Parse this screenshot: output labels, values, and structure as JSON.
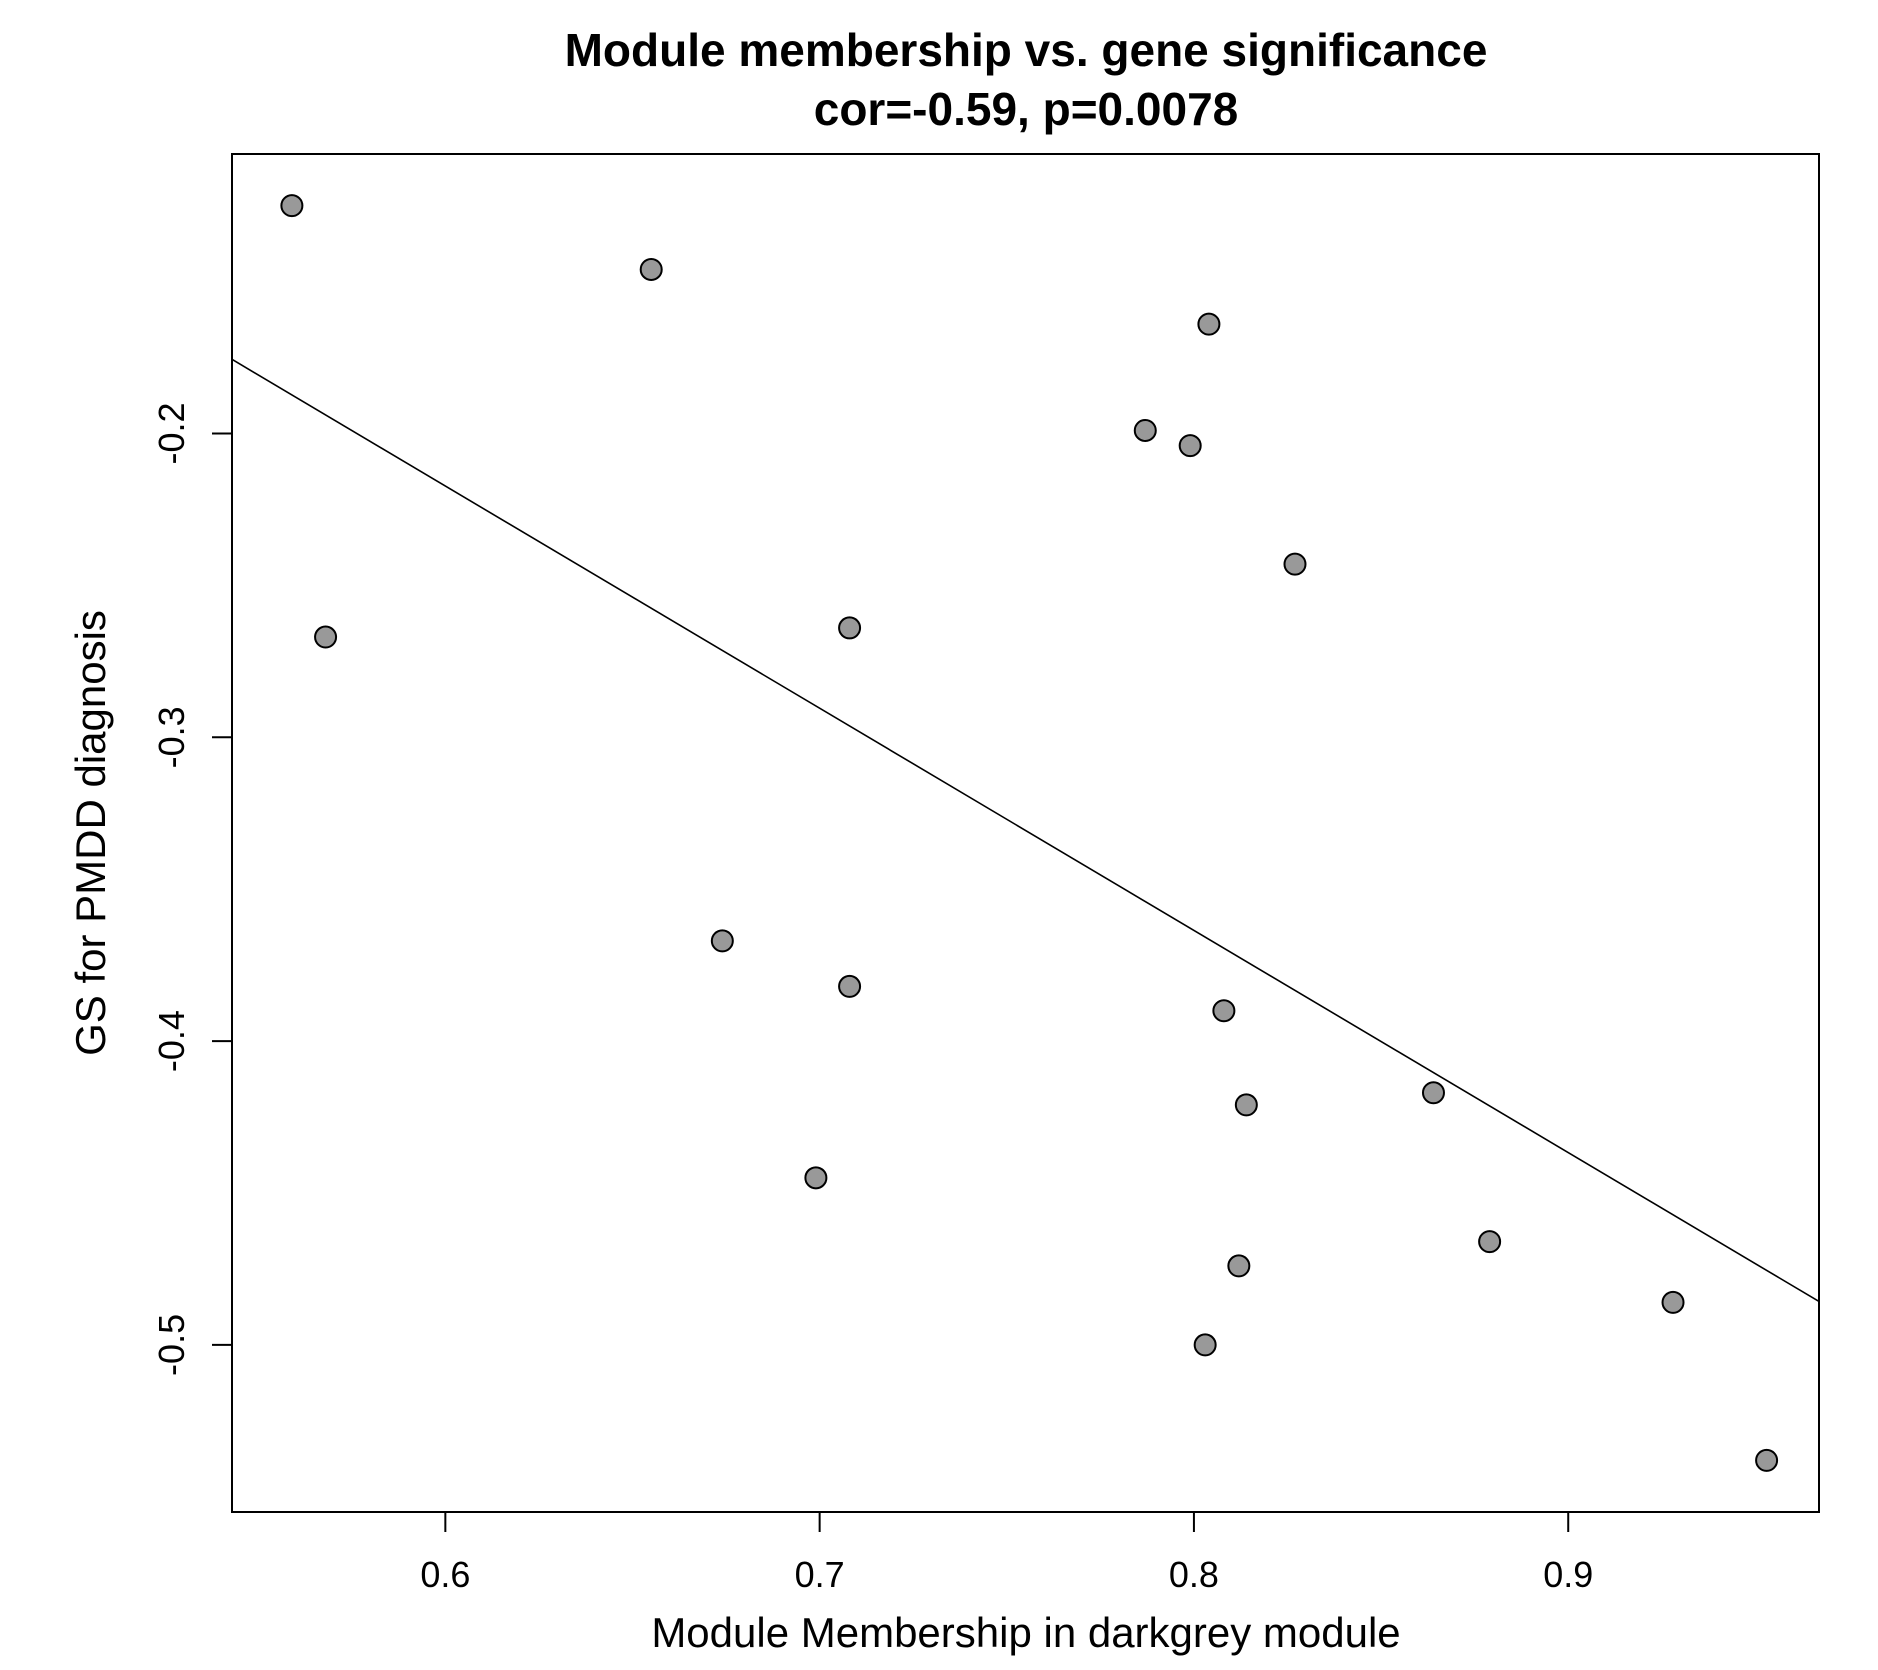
{
  "chart_data": {
    "type": "scatter",
    "title": "Module membership vs. gene significance",
    "subtitle": "cor=-0.59, p=0.0078",
    "xlabel": "Module Membership in darkgrey module",
    "ylabel": "GS for PMDD diagnosis",
    "xlim": [
      0.543,
      0.967
    ],
    "ylim": [
      -0.555,
      -0.108
    ],
    "xticks": [
      0.6,
      0.7,
      0.8,
      0.9
    ],
    "yticks": [
      -0.5,
      -0.4,
      -0.3,
      -0.2
    ],
    "xtick_labels": [
      "0.6",
      "0.7",
      "0.8",
      "0.9"
    ],
    "ytick_labels": [
      "-0.5",
      "-0.4",
      "-0.3",
      "-0.2"
    ],
    "grid": false,
    "point_fill": "#999999",
    "point_stroke": "#000000",
    "points": [
      {
        "x": 0.559,
        "y": -0.125
      },
      {
        "x": 0.655,
        "y": -0.146
      },
      {
        "x": 0.804,
        "y": -0.164
      },
      {
        "x": 0.787,
        "y": -0.199
      },
      {
        "x": 0.799,
        "y": -0.204
      },
      {
        "x": 0.827,
        "y": -0.243
      },
      {
        "x": 0.568,
        "y": -0.267
      },
      {
        "x": 0.708,
        "y": -0.264
      },
      {
        "x": 0.674,
        "y": -0.367
      },
      {
        "x": 0.708,
        "y": -0.382
      },
      {
        "x": 0.808,
        "y": -0.39
      },
      {
        "x": 0.814,
        "y": -0.421
      },
      {
        "x": 0.864,
        "y": -0.417
      },
      {
        "x": 0.699,
        "y": -0.445
      },
      {
        "x": 0.879,
        "y": -0.466
      },
      {
        "x": 0.812,
        "y": -0.474
      },
      {
        "x": 0.928,
        "y": -0.486
      },
      {
        "x": 0.803,
        "y": -0.5
      },
      {
        "x": 0.953,
        "y": -0.538
      }
    ],
    "fit_line": {
      "x": [
        0.543,
        0.967
      ],
      "y": [
        -0.1756,
        -0.4857
      ]
    }
  }
}
